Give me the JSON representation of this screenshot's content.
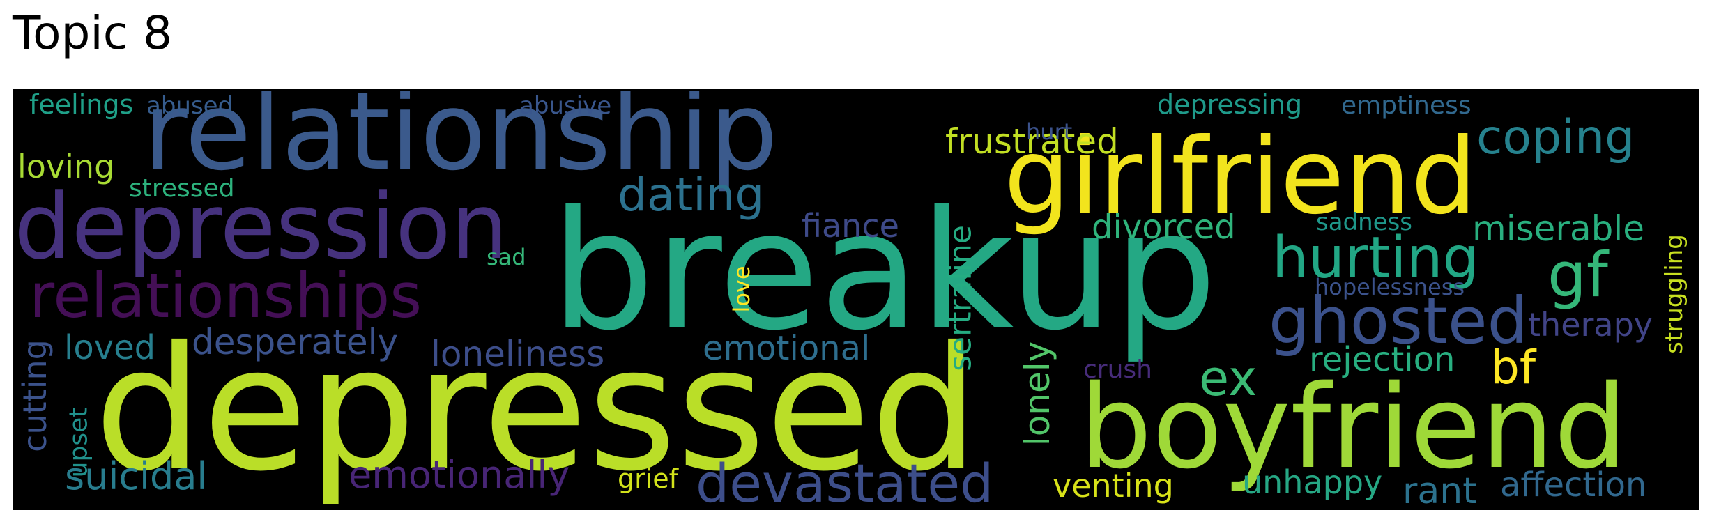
{
  "title": "Topic 8",
  "wordcloud": {
    "background": "#000000",
    "colormap": "viridis",
    "words": [
      {
        "text": "breakup",
        "color": "#24a884",
        "rotated": false
      },
      {
        "text": "depressed",
        "color": "#bade28",
        "rotated": false
      },
      {
        "text": "relationship",
        "color": "#3b5a8c",
        "rotated": false
      },
      {
        "text": "girlfriend",
        "color": "#f2e41d",
        "rotated": false
      },
      {
        "text": "boyfriend",
        "color": "#9fd938",
        "rotated": false
      },
      {
        "text": "depression",
        "color": "#46327e",
        "rotated": false
      },
      {
        "text": "relationships",
        "color": "#440f56",
        "rotated": false
      },
      {
        "text": "ghosted",
        "color": "#3b518b",
        "rotated": false
      },
      {
        "text": "hurting",
        "color": "#22a785",
        "rotated": false
      },
      {
        "text": "devastated",
        "color": "#3d4e8a",
        "rotated": false
      },
      {
        "text": "coping",
        "color": "#26828e",
        "rotated": false
      },
      {
        "text": "dating",
        "color": "#2c718e",
        "rotated": false
      },
      {
        "text": "gf",
        "color": "#35b779",
        "rotated": false
      },
      {
        "text": "ex",
        "color": "#3bbb75",
        "rotated": false
      },
      {
        "text": "bf",
        "color": "#fde725",
        "rotated": false
      },
      {
        "text": "miserable",
        "color": "#29af7f",
        "rotated": false
      },
      {
        "text": "frustrated",
        "color": "#c2df23",
        "rotated": false
      },
      {
        "text": "divorced",
        "color": "#2fb47c",
        "rotated": false
      },
      {
        "text": "fiance",
        "color": "#3e4a89",
        "rotated": false
      },
      {
        "text": "desperately",
        "color": "#3b528b",
        "rotated": false
      },
      {
        "text": "loneliness",
        "color": "#3d4e8a",
        "rotated": false
      },
      {
        "text": "emotional",
        "color": "#2e6e8e",
        "rotated": false
      },
      {
        "text": "emotionally",
        "color": "#482576",
        "rotated": false
      },
      {
        "text": "suicidal",
        "color": "#287d8e",
        "rotated": false
      },
      {
        "text": "loved",
        "color": "#277f8e",
        "rotated": false
      },
      {
        "text": "rejection",
        "color": "#28ae80",
        "rotated": false
      },
      {
        "text": "therapy",
        "color": "#414487",
        "rotated": false
      },
      {
        "text": "venting",
        "color": "#d8e219",
        "rotated": false
      },
      {
        "text": "unhappy",
        "color": "#26a784",
        "rotated": false
      },
      {
        "text": "rant",
        "color": "#2c728e",
        "rotated": false
      },
      {
        "text": "affection",
        "color": "#31688e",
        "rotated": false
      },
      {
        "text": "loving",
        "color": "#a8db34",
        "rotated": false
      },
      {
        "text": "feelings",
        "color": "#1fa088",
        "rotated": false
      },
      {
        "text": "abused",
        "color": "#365c8d",
        "rotated": false
      },
      {
        "text": "abusive",
        "color": "#39568c",
        "rotated": false
      },
      {
        "text": "depressing",
        "color": "#1f9a8a",
        "rotated": false
      },
      {
        "text": "emptiness",
        "color": "#31688e",
        "rotated": false
      },
      {
        "text": "stressed",
        "color": "#2db27d",
        "rotated": false
      },
      {
        "text": "hurt",
        "color": "#3b528b",
        "rotated": false
      },
      {
        "text": "sadness",
        "color": "#1f988b",
        "rotated": false
      },
      {
        "text": "hopelessness",
        "color": "#3b528b",
        "rotated": false
      },
      {
        "text": "crush",
        "color": "#472c7a",
        "rotated": false
      },
      {
        "text": "grief",
        "color": "#d2e21b",
        "rotated": false
      },
      {
        "text": "sad",
        "color": "#35b779",
        "rotated": false
      },
      {
        "text": "sertraline",
        "color": "#25ac82",
        "rotated": true
      },
      {
        "text": "lonely",
        "color": "#52c569",
        "rotated": true
      },
      {
        "text": "love",
        "color": "#fde725",
        "rotated": true
      },
      {
        "text": "cutting",
        "color": "#3b528b",
        "rotated": true
      },
      {
        "text": "upset",
        "color": "#21918c",
        "rotated": true
      },
      {
        "text": "struggling",
        "color": "#c8e020",
        "rotated": true
      }
    ]
  }
}
